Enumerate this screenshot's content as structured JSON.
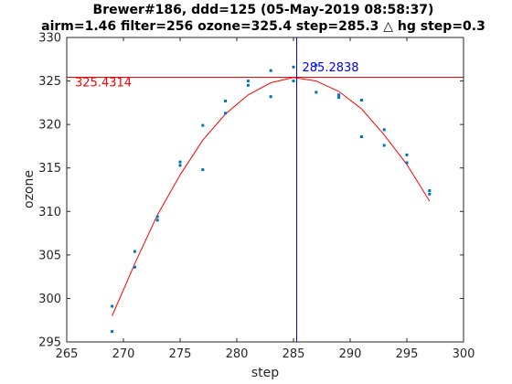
{
  "chart_data": {
    "type": "scatter",
    "title": "Brewer#186, ddd=125 (05-May-2019 08:58:37)",
    "subtitle": "airm=1.46  filter=256 ozone=325.4  step=285.3 △ hg step=0.3",
    "xlabel": "step",
    "ylabel": "ozone",
    "xlim": [
      265,
      300
    ],
    "ylim": [
      295,
      330
    ],
    "xticks": [
      "265",
      "270",
      "275",
      "280",
      "285",
      "290",
      "295",
      "300"
    ],
    "yticks": [
      "295",
      "300",
      "305",
      "310",
      "315",
      "320",
      "325",
      "330"
    ],
    "grid": false,
    "points": {
      "color": "#0072bd",
      "x": [
        269,
        269,
        271,
        271,
        273,
        273,
        275,
        275,
        277,
        277,
        279,
        279,
        281,
        281,
        283,
        283,
        285,
        285,
        287,
        287,
        289,
        289,
        291,
        291,
        293,
        293,
        295,
        295,
        297,
        297
      ],
      "y": [
        296.2,
        299.1,
        303.6,
        305.4,
        309.0,
        309.4,
        315.3,
        315.7,
        314.8,
        319.9,
        321.3,
        322.7,
        324.5,
        325.0,
        323.2,
        326.2,
        325.0,
        326.6,
        323.7,
        326.8,
        323.1,
        323.4,
        318.6,
        322.8,
        317.6,
        319.4,
        315.6,
        316.5,
        312.0,
        312.4
      ]
    },
    "fit": {
      "color": "#ff0000",
      "x": [
        269,
        271,
        273,
        275,
        277,
        279,
        281,
        283,
        285,
        287,
        289,
        291,
        293,
        295,
        297
      ],
      "y": [
        298.0,
        304.0,
        309.6,
        314.2,
        318.2,
        321.2,
        323.4,
        324.8,
        325.4,
        325.0,
        323.8,
        321.8,
        318.8,
        315.4,
        311.2
      ]
    },
    "hline": {
      "y": 325.4314,
      "label": "325.4314",
      "color": "#ff0000"
    },
    "vline": {
      "x": 285.2838,
      "label": "285.2838",
      "color": "#0000ff"
    }
  }
}
